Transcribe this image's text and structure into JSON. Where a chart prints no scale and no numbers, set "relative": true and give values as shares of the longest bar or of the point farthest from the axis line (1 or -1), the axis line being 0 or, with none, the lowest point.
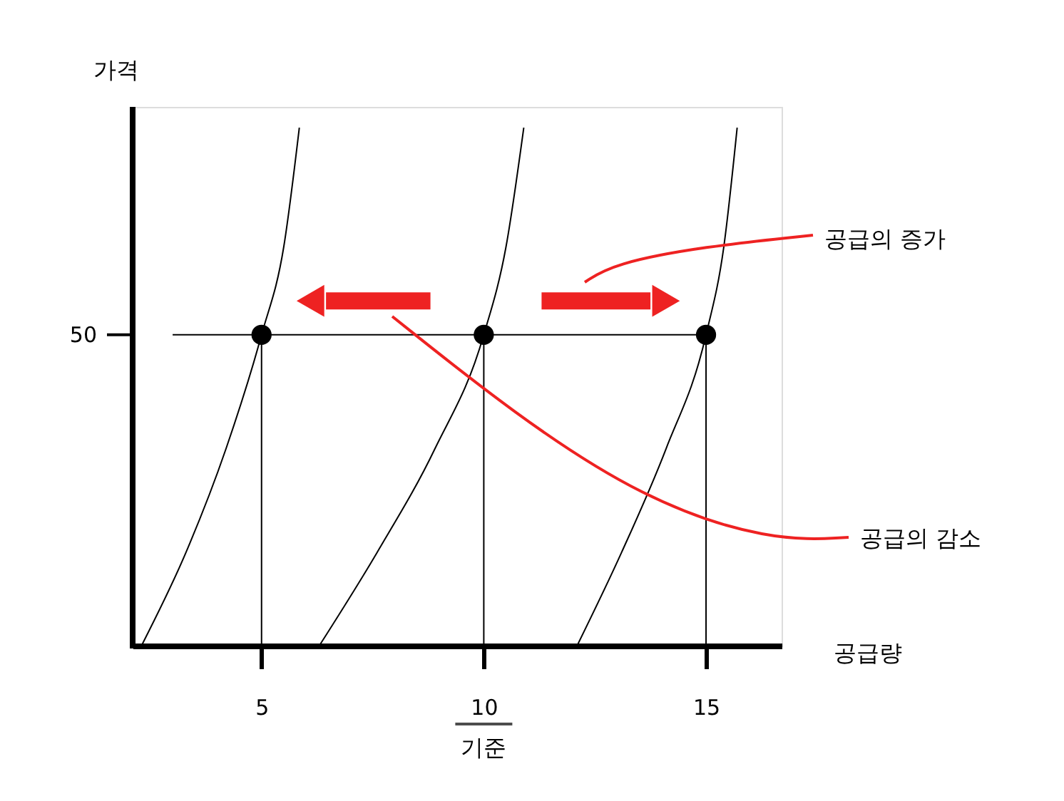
{
  "chart_data": {
    "type": "line",
    "xlabel": "공급량",
    "ylabel": "가격",
    "relative": true,
    "xlim": [
      2.1,
      16.7
    ],
    "ref_lines": [
      {
        "axis": "x",
        "value": 2.1,
        "color": "#000000"
      }
    ],
    "xticks": [
      5,
      10,
      15
    ],
    "grid": false,
    "series": [
      {
        "color": "#000000",
        "x": [
          2.3,
          3.3,
          4.2,
          5,
          5.5,
          5.85
        ],
        "values": [
          0,
          0.18,
          0.38,
          0.6,
          0.77,
          1
        ]
      },
      {
        "color": "#000000",
        "x": [
          6.3,
          7.6,
          8.9,
          10,
          10.5,
          10.9
        ],
        "values": [
          0,
          0.18,
          0.38,
          0.6,
          0.77,
          1
        ]
      },
      {
        "color": "#000000",
        "x": [
          12.1,
          13.1,
          14.1,
          15,
          15.4,
          15.7
        ],
        "values": [
          0,
          0.18,
          0.38,
          0.6,
          0.77,
          1
        ]
      },
      {
        "color": "#000000",
        "x": [
          3,
          15
        ],
        "values": [
          0.6,
          0.6
        ]
      },
      {
        "color": "#000000",
        "x": [
          5,
          5
        ],
        "values": [
          0.6,
          0
        ]
      },
      {
        "color": "#000000",
        "x": [
          10,
          10
        ],
        "values": [
          0.6,
          0
        ]
      },
      {
        "color": "#000000",
        "x": [
          15,
          15
        ],
        "values": [
          0.6,
          0
        ]
      },
      {
        "type": "scatter",
        "color": "#000000",
        "x": [
          5,
          10,
          15
        ],
        "values": [
          0.6,
          0.6,
          0.6
        ]
      }
    ],
    "annotations": [
      "공급의 증가",
      "공급의 감소",
      "기준",
      "50"
    ]
  }
}
